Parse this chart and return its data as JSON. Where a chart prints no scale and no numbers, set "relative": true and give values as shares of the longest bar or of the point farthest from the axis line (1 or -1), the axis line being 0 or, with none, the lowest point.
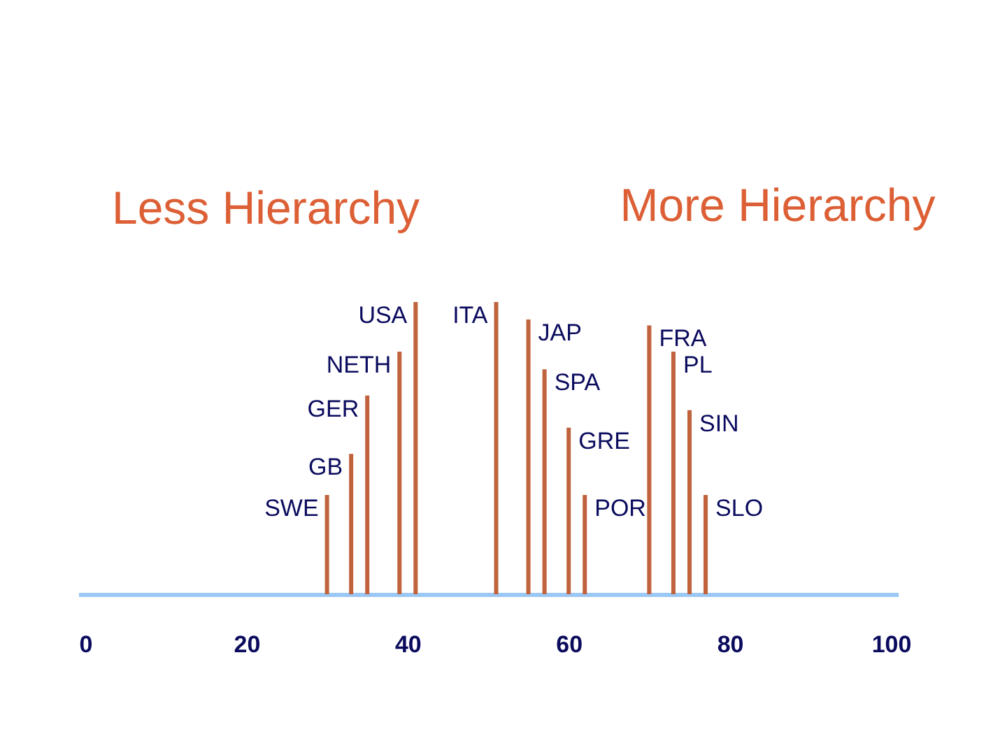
{
  "chart_data": {
    "type": "bar",
    "relative": true,
    "legend": false,
    "xlim": [
      0,
      100
    ],
    "xticks": [
      0,
      20,
      40,
      60,
      80,
      100
    ],
    "annotations": [
      "Less Hierarchy",
      "More Hierarchy"
    ],
    "series": [
      {
        "name": "SWE",
        "color": "#c0623c",
        "x": [
          30
        ],
        "values": [
          0.34
        ]
      },
      {
        "name": "GB",
        "color": "#c0623c",
        "x": [
          33
        ],
        "values": [
          0.48
        ]
      },
      {
        "name": "GER",
        "color": "#c0623c",
        "x": [
          35
        ],
        "values": [
          0.68
        ]
      },
      {
        "name": "NETH",
        "color": "#c0623c",
        "x": [
          39
        ],
        "values": [
          0.83
        ]
      },
      {
        "name": "USA",
        "color": "#c0623c",
        "x": [
          41
        ],
        "values": [
          1
        ]
      },
      {
        "name": "ITA",
        "color": "#c0623c",
        "x": [
          51
        ],
        "values": [
          1
        ]
      },
      {
        "name": "JAP",
        "color": "#c0623c",
        "x": [
          55
        ],
        "values": [
          0.94
        ]
      },
      {
        "name": "SPA",
        "color": "#c0623c",
        "x": [
          57
        ],
        "values": [
          0.77
        ]
      },
      {
        "name": "GRE",
        "color": "#c0623c",
        "x": [
          60
        ],
        "values": [
          0.57
        ]
      },
      {
        "name": "POR",
        "color": "#c0623c",
        "x": [
          62
        ],
        "values": [
          0.34
        ]
      },
      {
        "name": "FRA",
        "color": "#c0623c",
        "x": [
          70
        ],
        "values": [
          0.92
        ]
      },
      {
        "name": "PL",
        "color": "#c0623c",
        "x": [
          73
        ],
        "values": [
          0.83
        ]
      },
      {
        "name": "SIN",
        "color": "#c0623c",
        "x": [
          75
        ],
        "values": [
          0.63
        ]
      },
      {
        "name": "SLO",
        "color": "#c0623c",
        "x": [
          77
        ],
        "values": [
          0.34
        ]
      }
    ]
  }
}
